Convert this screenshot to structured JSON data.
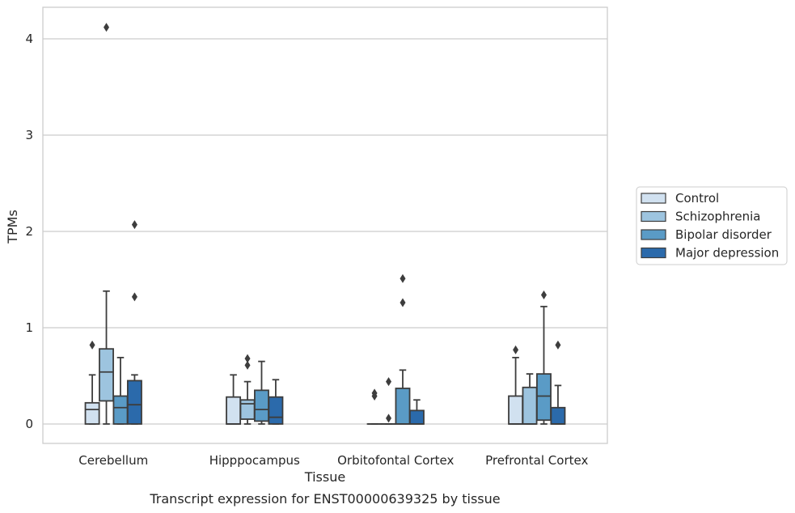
{
  "chart_data": {
    "type": "boxplot",
    "caption": "Transcript expression for ENST00000639325 by tissue",
    "xlabel": "Tissue",
    "ylabel": "TPMs",
    "ylim": [
      -0.2,
      4.32
    ],
    "yticks": [
      0,
      1,
      2,
      3,
      4
    ],
    "grid": true,
    "legend_placement": "right",
    "categories": [
      "Cerebellum",
      "Hipppocampus",
      "Orbitofontal Cortex",
      "Prefrontal Cortex"
    ],
    "series": [
      {
        "name": "Control",
        "color": "#d1e1f0",
        "boxes": [
          {
            "whislo": 0.0,
            "q1": 0.0,
            "med": 0.15,
            "q3": 0.22,
            "whishi": 0.51,
            "fliers": [
              0.82
            ]
          },
          {
            "whislo": 0.0,
            "q1": 0.0,
            "med": 0.0,
            "q3": 0.28,
            "whishi": 0.51,
            "fliers": []
          },
          {
            "whislo": 0.0,
            "q1": 0.0,
            "med": 0.0,
            "q3": 0.0,
            "whishi": 0.0,
            "fliers": [
              0.29,
              0.32
            ]
          },
          {
            "whislo": 0.0,
            "q1": 0.0,
            "med": 0.0,
            "q3": 0.29,
            "whishi": 0.69,
            "fliers": [
              0.77
            ]
          }
        ]
      },
      {
        "name": "Schizophrenia",
        "color": "#9dc4df",
        "boxes": [
          {
            "whislo": 0.0,
            "q1": 0.24,
            "med": 0.54,
            "q3": 0.78,
            "whishi": 1.38,
            "fliers": [
              4.12
            ]
          },
          {
            "whislo": 0.0,
            "q1": 0.05,
            "med": 0.21,
            "q3": 0.25,
            "whishi": 0.44,
            "fliers": [
              0.61,
              0.68
            ]
          },
          {
            "whislo": 0.0,
            "q1": 0.0,
            "med": 0.0,
            "q3": 0.0,
            "whishi": 0.0,
            "fliers": [
              0.06,
              0.44
            ]
          },
          {
            "whislo": 0.0,
            "q1": 0.0,
            "med": 0.0,
            "q3": 0.38,
            "whishi": 0.52,
            "fliers": []
          }
        ]
      },
      {
        "name": "Bipolar disorder",
        "color": "#5a9bc6",
        "boxes": [
          {
            "whislo": 0.0,
            "q1": 0.0,
            "med": 0.17,
            "q3": 0.29,
            "whishi": 0.69,
            "fliers": []
          },
          {
            "whislo": 0.0,
            "q1": 0.03,
            "med": 0.15,
            "q3": 0.35,
            "whishi": 0.65,
            "fliers": []
          },
          {
            "whislo": 0.0,
            "q1": 0.0,
            "med": 0.0,
            "q3": 0.37,
            "whishi": 0.56,
            "fliers": [
              1.26,
              1.51
            ]
          },
          {
            "whislo": 0.0,
            "q1": 0.04,
            "med": 0.29,
            "q3": 0.52,
            "whishi": 1.22,
            "fliers": [
              1.34
            ]
          }
        ]
      },
      {
        "name": "Major depression",
        "color": "#2b6aab",
        "boxes": [
          {
            "whislo": 0.0,
            "q1": 0.0,
            "med": 0.2,
            "q3": 0.45,
            "whishi": 0.51,
            "fliers": [
              1.32,
              2.07
            ]
          },
          {
            "whislo": 0.0,
            "q1": 0.0,
            "med": 0.07,
            "q3": 0.28,
            "whishi": 0.46,
            "fliers": []
          },
          {
            "whislo": 0.0,
            "q1": 0.0,
            "med": 0.0,
            "q3": 0.14,
            "whishi": 0.25,
            "fliers": []
          },
          {
            "whislo": 0.0,
            "q1": 0.0,
            "med": 0.0,
            "q3": 0.17,
            "whishi": 0.4,
            "fliers": [
              0.82
            ]
          }
        ]
      }
    ]
  }
}
